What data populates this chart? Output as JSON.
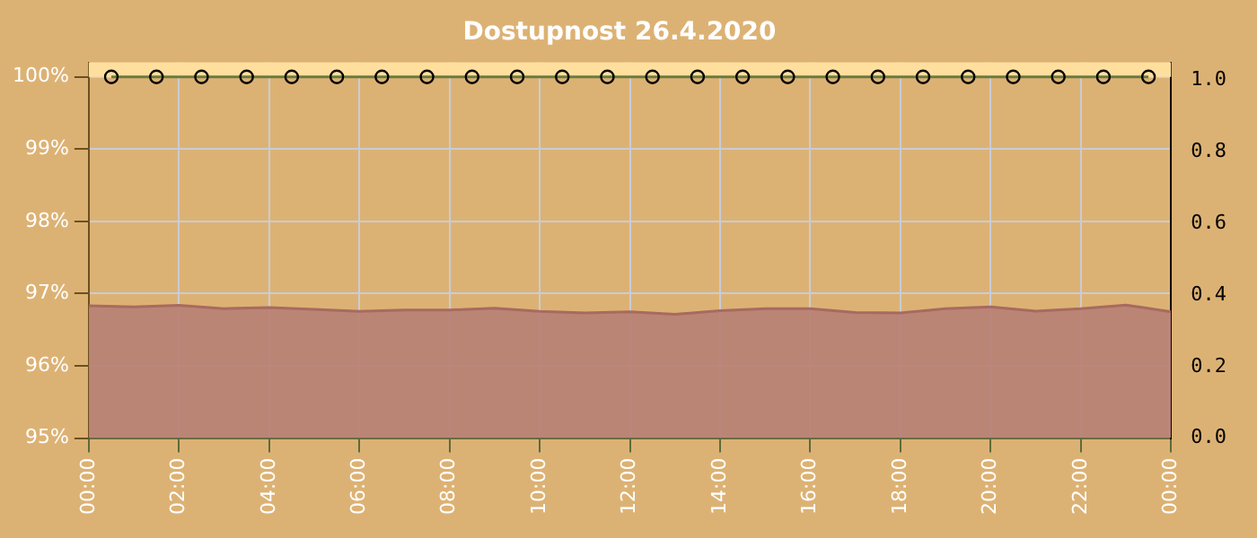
{
  "chart_data": {
    "type": "line",
    "title": "Dostupnost 26.4.2020",
    "xlim": [
      0,
      24
    ],
    "xticks": [
      {
        "value": 0,
        "label": "00:00"
      },
      {
        "value": 2,
        "label": "02:00"
      },
      {
        "value": 4,
        "label": "04:00"
      },
      {
        "value": 6,
        "label": "06:00"
      },
      {
        "value": 8,
        "label": "08:00"
      },
      {
        "value": 10,
        "label": "10:00"
      },
      {
        "value": 12,
        "label": "12:00"
      },
      {
        "value": 14,
        "label": "14:00"
      },
      {
        "value": 16,
        "label": "16:00"
      },
      {
        "value": 18,
        "label": "18:00"
      },
      {
        "value": 20,
        "label": "20:00"
      },
      {
        "value": 22,
        "label": "22:00"
      },
      {
        "value": 24,
        "label": "00:00"
      }
    ],
    "ylim": [
      95,
      100.2
    ],
    "yticks": [
      {
        "value": 95,
        "label": "95%"
      },
      {
        "value": 96,
        "label": "96%"
      },
      {
        "value": 97,
        "label": "97%"
      },
      {
        "value": 98,
        "label": "98%"
      },
      {
        "value": 99,
        "label": "99%"
      },
      {
        "value": 100,
        "label": "100%"
      }
    ],
    "y2lim": [
      0,
      1.05
    ],
    "y2ticks": [
      {
        "value": 0,
        "label": "0.0"
      },
      {
        "value": 0.2,
        "label": "0.2"
      },
      {
        "value": 0.4,
        "label": "0.4"
      },
      {
        "value": 0.6,
        "label": "0.6"
      },
      {
        "value": 0.8,
        "label": "0.8"
      },
      {
        "value": 1,
        "label": "1.0"
      }
    ],
    "grid": true,
    "legend": false,
    "bands": [
      {
        "axis": "y",
        "from": 100,
        "to": 100.2,
        "color": "#ffdf9e"
      }
    ],
    "series": [
      {
        "type": "area",
        "axis": "y2",
        "color": "#b88276",
        "x": [
          0,
          1,
          2,
          3,
          4,
          5,
          6,
          7,
          8,
          9,
          10,
          11,
          12,
          13,
          14,
          15,
          16,
          17,
          18,
          19,
          20,
          21,
          22,
          23,
          24
        ],
        "values": [
          0.37,
          0.367,
          0.371,
          0.362,
          0.365,
          0.36,
          0.354,
          0.358,
          0.358,
          0.363,
          0.354,
          0.35,
          0.353,
          0.346,
          0.356,
          0.362,
          0.362,
          0.351,
          0.35,
          0.362,
          0.367,
          0.355,
          0.362,
          0.372,
          0.353
        ]
      },
      {
        "type": "line",
        "color": "#6b7a3c",
        "marker": "circle",
        "x": [
          0.5,
          1.5,
          2.5,
          3.5,
          4.5,
          5.5,
          6.5,
          7.5,
          8.5,
          9.5,
          10.5,
          11.5,
          12.5,
          13.5,
          14.5,
          15.5,
          16.5,
          17.5,
          18.5,
          19.5,
          20.5,
          21.5,
          22.5,
          23.5
        ],
        "values": [
          100,
          100,
          100,
          100,
          100,
          100,
          100,
          100,
          100,
          100,
          100,
          100,
          100,
          100,
          100,
          100,
          100,
          100,
          100,
          100,
          100,
          100,
          100,
          100
        ]
      }
    ]
  }
}
